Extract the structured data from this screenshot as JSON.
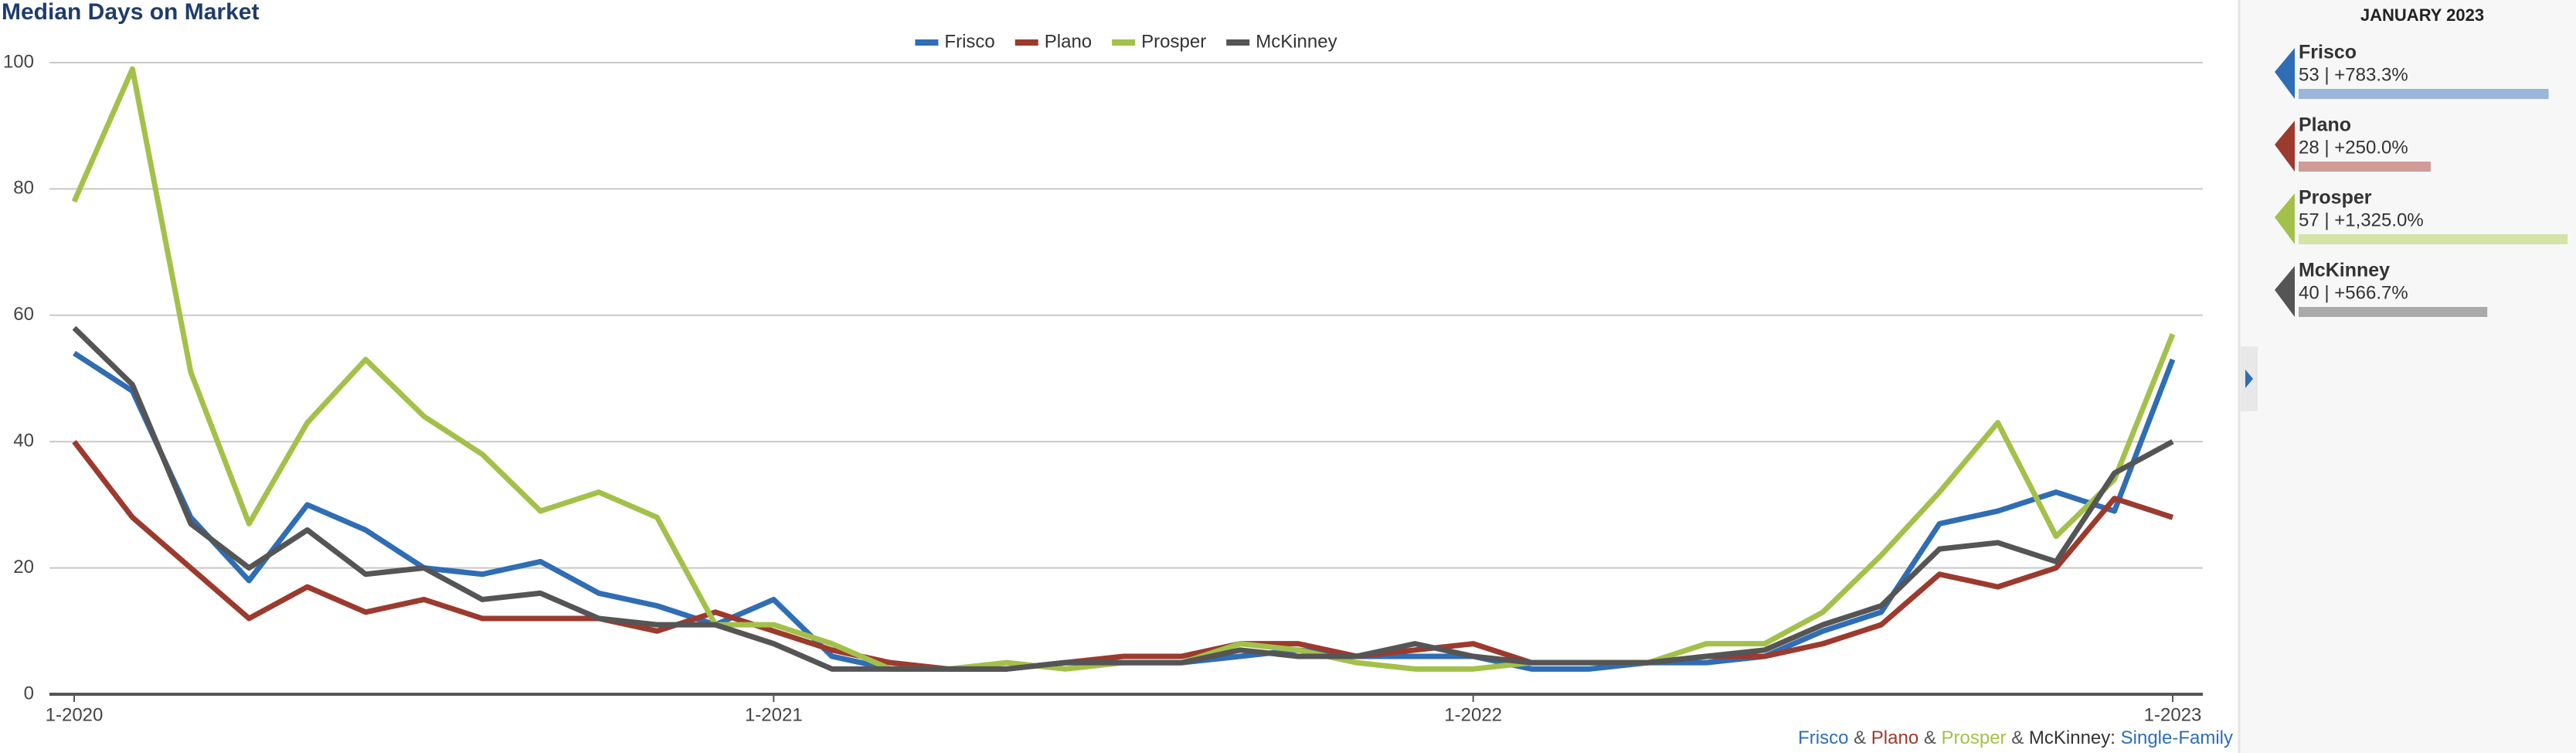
{
  "chart_data": {
    "type": "line",
    "title": "Median Days on Market",
    "categories": [
      "1-2020",
      null,
      null,
      null,
      null,
      null,
      null,
      null,
      null,
      null,
      null,
      null,
      "1-2021",
      null,
      null,
      null,
      null,
      null,
      null,
      null,
      null,
      null,
      null,
      null,
      "1-2022",
      null,
      null,
      null,
      null,
      null,
      null,
      null,
      null,
      null,
      null,
      null,
      "1-2023"
    ],
    "series": [
      {
        "name": "Frisco",
        "color": "#2f6db5",
        "values": [
          54,
          48,
          28,
          18,
          30,
          26,
          20,
          19,
          21,
          16,
          14,
          11,
          15,
          6,
          4,
          4,
          4,
          5,
          5,
          5,
          6,
          7,
          6,
          6,
          6,
          4,
          4,
          5,
          5,
          6,
          10,
          13,
          27,
          29,
          32,
          29,
          53
        ]
      },
      {
        "name": "Plano",
        "color": "#9c3a2e",
        "values": [
          40,
          28,
          20,
          12,
          17,
          13,
          15,
          12,
          12,
          12,
          10,
          13,
          10,
          7,
          5,
          4,
          4,
          5,
          6,
          6,
          8,
          8,
          6,
          7,
          8,
          5,
          5,
          5,
          6,
          6,
          8,
          11,
          19,
          17,
          20,
          31,
          28
        ]
      },
      {
        "name": "Prosper",
        "color": "#a3c14a",
        "values": [
          78,
          99,
          51,
          27,
          43,
          53,
          44,
          38,
          29,
          32,
          28,
          11,
          11,
          8,
          4,
          4,
          5,
          4,
          5,
          5,
          8,
          7,
          5,
          4,
          4,
          5,
          5,
          5,
          8,
          8,
          13,
          22,
          32,
          43,
          25,
          34,
          57
        ]
      },
      {
        "name": "McKinney",
        "color": "#555555",
        "values": [
          58,
          49,
          27,
          20,
          26,
          19,
          20,
          15,
          16,
          12,
          11,
          11,
          8,
          4,
          4,
          4,
          4,
          5,
          5,
          5,
          7,
          6,
          6,
          8,
          6,
          5,
          5,
          5,
          6,
          7,
          11,
          14,
          23,
          24,
          21,
          35,
          40
        ]
      }
    ],
    "ylim": [
      0,
      100
    ],
    "yticks": [
      0,
      20,
      40,
      60,
      80,
      100
    ],
    "grid": true,
    "footer": [
      {
        "text": "Frisco",
        "color": "#2f6db5"
      },
      {
        "text": " & ",
        "color": "#555555"
      },
      {
        "text": "Plano",
        "color": "#9c3a2e"
      },
      {
        "text": " & ",
        "color": "#555555"
      },
      {
        "text": "Prosper",
        "color": "#a3c14a"
      },
      {
        "text": " & ",
        "color": "#555555"
      },
      {
        "text": "McKinney",
        "color": "#333333"
      },
      {
        "text": ": ",
        "color": "#333333"
      },
      {
        "text": "Single-Family",
        "color": "#2f6db5"
      }
    ]
  },
  "panel": {
    "title": "JANUARY 2023",
    "items": [
      {
        "name": "Frisco",
        "label": "53 | +783.3%",
        "value": 53,
        "color": "#2f6db5",
        "bar_color": "#9ab6da"
      },
      {
        "name": "Plano",
        "label": "28 | +250.0%",
        "value": 28,
        "color": "#9c3a2e",
        "bar_color": "#d19b98"
      },
      {
        "name": "Prosper",
        "label": "57 | +1,325.0%",
        "value": 57,
        "color": "#a3c14a",
        "bar_color": "#d4e3a6"
      },
      {
        "name": "McKinney",
        "label": "40 | +566.7%",
        "value": 40,
        "color": "#555555",
        "bar_color": "#aaaaaa"
      }
    ]
  }
}
